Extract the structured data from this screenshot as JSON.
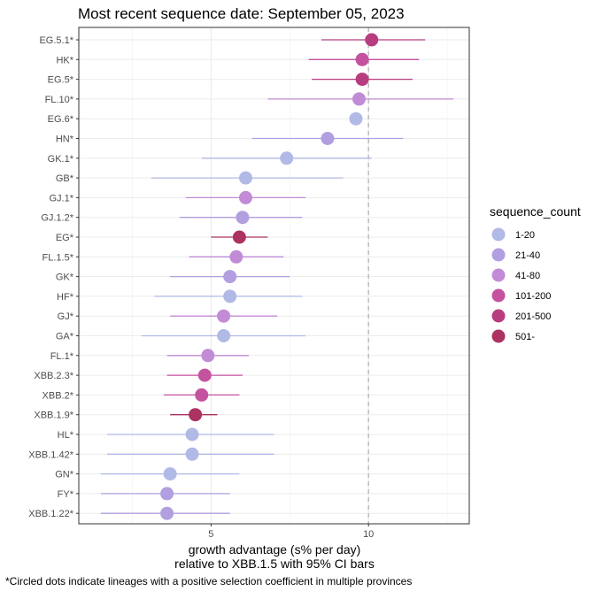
{
  "chart_data": {
    "type": "scatter",
    "title": "Most recent sequence date: September 05, 2023",
    "xlabel_line1": "growth advantage (s% per day)",
    "xlabel_line2": "relative to  XBB.1.5  with 95% CI bars",
    "ylabel": "",
    "xlim": [
      0.8,
      13.2
    ],
    "x_ticks": [
      5,
      10
    ],
    "reference_x": 10,
    "grid": true,
    "legend": {
      "title": "sequence_count",
      "placement": "right",
      "entries": [
        {
          "label": "1-20",
          "color": "#b1b9e6"
        },
        {
          "label": "21-40",
          "color": "#b19fdf"
        },
        {
          "label": "41-80",
          "color": "#c18bd6"
        },
        {
          "label": "101-200",
          "color": "#c4529f"
        },
        {
          "label": "201-500",
          "color": "#b73d80"
        },
        {
          "label": "501-",
          "color": "#ab3261"
        }
      ]
    },
    "series": [
      {
        "lineage": "EG.5.1*",
        "x": 10.1,
        "lo": 8.5,
        "hi": 11.8,
        "group": "201-500"
      },
      {
        "lineage": "HK*",
        "x": 9.8,
        "lo": 8.1,
        "hi": 11.6,
        "group": "101-200"
      },
      {
        "lineage": "EG.5*",
        "x": 9.8,
        "lo": 8.2,
        "hi": 11.4,
        "group": "201-500"
      },
      {
        "lineage": "FL.10*",
        "x": 9.7,
        "lo": 6.8,
        "hi": 12.7,
        "group": "41-80"
      },
      {
        "lineage": "EG.6*",
        "x": 9.6,
        "lo": 9.6,
        "hi": 9.6,
        "group": "1-20"
      },
      {
        "lineage": "HN*",
        "x": 8.7,
        "lo": 6.3,
        "hi": 11.1,
        "group": "21-40"
      },
      {
        "lineage": "GK.1*",
        "x": 7.4,
        "lo": 4.7,
        "hi": 10.1,
        "group": "1-20"
      },
      {
        "lineage": "GB*",
        "x": 6.1,
        "lo": 3.1,
        "hi": 9.2,
        "group": "1-20"
      },
      {
        "lineage": "GJ.1*",
        "x": 6.1,
        "lo": 4.2,
        "hi": 8.0,
        "group": "41-80"
      },
      {
        "lineage": "GJ.1.2*",
        "x": 6.0,
        "lo": 4.0,
        "hi": 7.9,
        "group": "21-40"
      },
      {
        "lineage": "EG*",
        "x": 5.9,
        "lo": 5.0,
        "hi": 6.8,
        "group": "501-"
      },
      {
        "lineage": "FL.1.5*",
        "x": 5.8,
        "lo": 4.3,
        "hi": 7.3,
        "group": "41-80"
      },
      {
        "lineage": "GK*",
        "x": 5.6,
        "lo": 3.7,
        "hi": 7.5,
        "group": "21-40"
      },
      {
        "lineage": "HF*",
        "x": 5.6,
        "lo": 3.2,
        "hi": 7.9,
        "group": "1-20"
      },
      {
        "lineage": "GJ*",
        "x": 5.4,
        "lo": 3.7,
        "hi": 7.1,
        "group": "41-80"
      },
      {
        "lineage": "GA*",
        "x": 5.4,
        "lo": 2.8,
        "hi": 8.0,
        "group": "1-20"
      },
      {
        "lineage": "FL.1*",
        "x": 4.9,
        "lo": 3.6,
        "hi": 6.2,
        "group": "41-80"
      },
      {
        "lineage": "XBB.2.3*",
        "x": 4.8,
        "lo": 3.6,
        "hi": 6.0,
        "group": "101-200"
      },
      {
        "lineage": "XBB.2*",
        "x": 4.7,
        "lo": 3.5,
        "hi": 5.9,
        "group": "101-200"
      },
      {
        "lineage": "XBB.1.9*",
        "x": 4.5,
        "lo": 3.7,
        "hi": 5.2,
        "group": "501-"
      },
      {
        "lineage": "HL*",
        "x": 4.4,
        "lo": 1.7,
        "hi": 7.0,
        "group": "1-20"
      },
      {
        "lineage": "XBB.1.42*",
        "x": 4.4,
        "lo": 1.7,
        "hi": 7.0,
        "group": "1-20"
      },
      {
        "lineage": "GN*",
        "x": 3.7,
        "lo": 1.5,
        "hi": 5.9,
        "group": "1-20"
      },
      {
        "lineage": "FY*",
        "x": 3.6,
        "lo": 1.5,
        "hi": 5.6,
        "group": "21-40"
      },
      {
        "lineage": "XBB.1.22*",
        "x": 3.6,
        "lo": 1.5,
        "hi": 5.6,
        "group": "21-40"
      }
    ]
  },
  "footnote": "*Circled dots indicate lineages with a positive selection coefficient in multiple provinces"
}
